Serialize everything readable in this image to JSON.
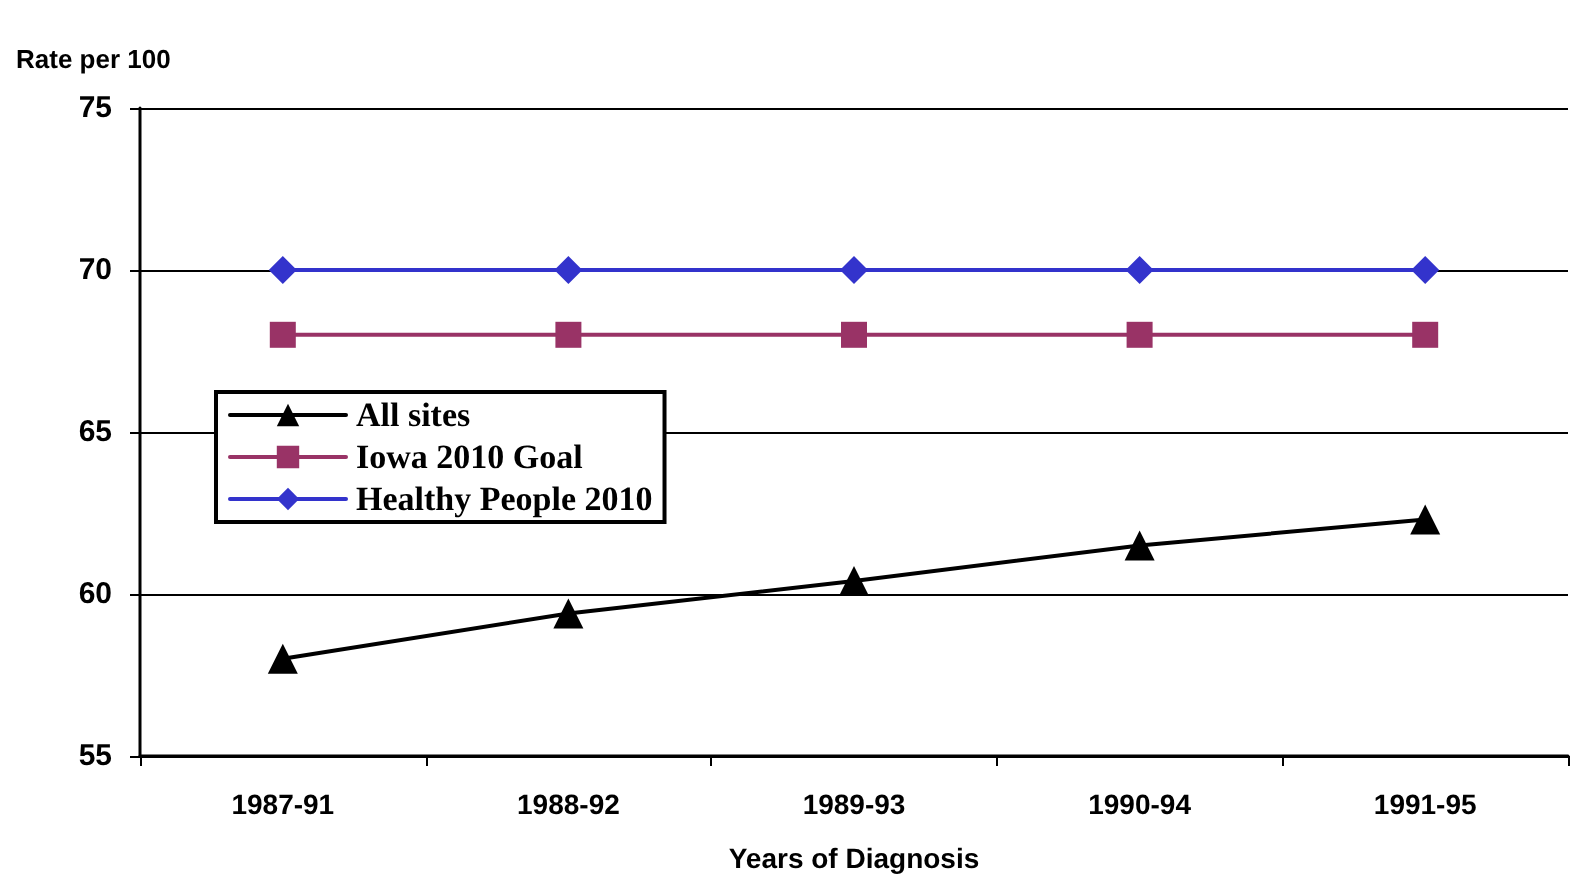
{
  "chart_data": {
    "type": "line",
    "ylabel": "Rate per 100",
    "xlabel": "Years of Diagnosis",
    "categories": [
      "1987-91",
      "1988-92",
      "1989-93",
      "1990-94",
      "1991-95"
    ],
    "series": [
      {
        "name": "All sites",
        "color": "#000000",
        "marker": "triangle",
        "values": [
          58.0,
          59.4,
          60.4,
          61.5,
          62.3
        ]
      },
      {
        "name": "Iowa 2010 Goal",
        "color": "#993366",
        "marker": "square",
        "values": [
          68,
          68,
          68,
          68,
          68
        ]
      },
      {
        "name": "Healthy People 2010",
        "color": "#3333cc",
        "marker": "diamond",
        "values": [
          70,
          70,
          70,
          70,
          70
        ]
      }
    ],
    "ylim": [
      55,
      75
    ],
    "yticks": [
      55,
      60,
      65,
      70,
      75
    ],
    "grid": "y",
    "legend": "left",
    "line_style": "solid"
  }
}
